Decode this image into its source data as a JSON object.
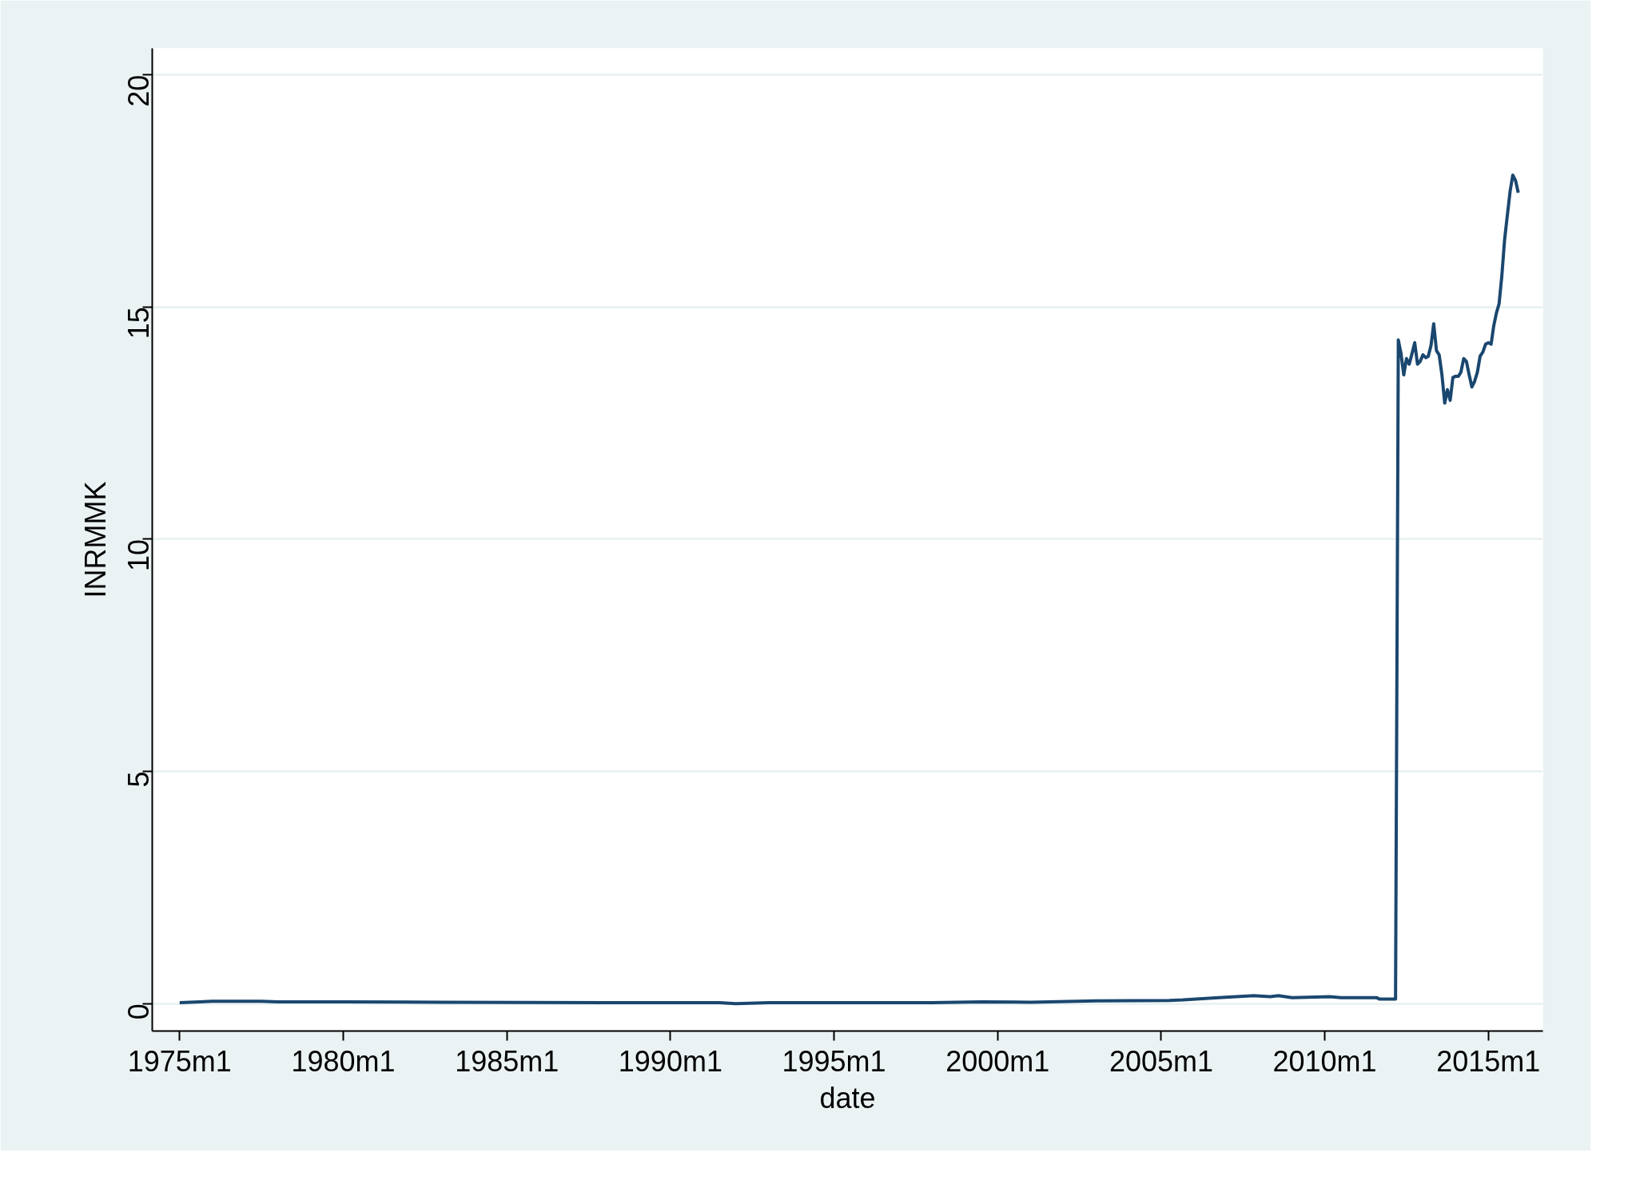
{
  "chart_data": {
    "type": "line",
    "xlabel": "date",
    "ylabel": "INRMMK",
    "x": [
      "1975-01",
      "1976-01",
      "1977-07",
      "1978-01",
      "1980-01",
      "1983-01",
      "1988-01",
      "1991-07",
      "1992-01",
      "1993-01",
      "1998-01",
      "1999-07",
      "2001-01",
      "2003-01",
      "2005-04",
      "2005-09",
      "2006-10",
      "2007-11",
      "2008-05",
      "2008-08",
      "2009-01",
      "2010-03",
      "2010-07",
      "2011-08",
      "2011-09",
      "2012-03",
      "2012-04",
      "2012-05",
      "2012-06",
      "2012-07",
      "2012-08",
      "2012-09",
      "2012-10",
      "2012-11",
      "2012-12",
      "2013-01",
      "2013-02",
      "2013-03",
      "2013-04",
      "2013-05",
      "2013-06",
      "2013-07",
      "2013-08",
      "2013-09",
      "2013-10",
      "2013-11",
      "2013-12",
      "2014-01",
      "2014-02",
      "2014-03",
      "2014-04",
      "2014-05",
      "2014-06",
      "2014-07",
      "2014-08",
      "2014-09",
      "2014-10",
      "2014-11",
      "2014-12",
      "2015-01",
      "2015-02",
      "2015-03",
      "2015-04",
      "2015-05",
      "2015-06",
      "2015-07",
      "2015-08",
      "2015-09",
      "2015-10",
      "2015-11",
      "2015-12"
    ],
    "series": [
      {
        "color": "#1a476f",
        "values": [
          0.02,
          0.05,
          0.05,
          0.04,
          0.04,
          0.03,
          0.02,
          0.02,
          0.0,
          0.02,
          0.02,
          0.04,
          0.03,
          0.06,
          0.07,
          0.08,
          0.13,
          0.17,
          0.15,
          0.17,
          0.13,
          0.15,
          0.13,
          0.13,
          0.1,
          0.1,
          14.29,
          14.0,
          13.54,
          13.89,
          13.77,
          14.0,
          14.23,
          13.77,
          13.83,
          13.97,
          13.91,
          13.94,
          14.17,
          14.64,
          14.06,
          13.97,
          13.54,
          12.93,
          13.22,
          12.99,
          13.48,
          13.51,
          13.51,
          13.6,
          13.89,
          13.83,
          13.54,
          13.28,
          13.4,
          13.6,
          13.94,
          14.03,
          14.2,
          14.23,
          14.2,
          14.58,
          14.87,
          15.07,
          15.68,
          16.44,
          16.97,
          17.49,
          17.84,
          17.72,
          17.46
        ]
      }
    ],
    "xlim": [
      "1974-03",
      "2016-09"
    ],
    "ylim": [
      -0.59,
      20.57
    ],
    "xticks": [
      {
        "value": "1975-01",
        "label": "1975m1"
      },
      {
        "value": "1980-01",
        "label": "1980m1"
      },
      {
        "value": "1985-01",
        "label": "1985m1"
      },
      {
        "value": "1990-01",
        "label": "1990m1"
      },
      {
        "value": "1995-01",
        "label": "1995m1"
      },
      {
        "value": "2000-01",
        "label": "2000m1"
      },
      {
        "value": "2005-01",
        "label": "2005m1"
      },
      {
        "value": "2010-01",
        "label": "2010m1"
      },
      {
        "value": "2015-01",
        "label": "2015m1"
      }
    ],
    "yticks": [
      0,
      5,
      10,
      15,
      20
    ],
    "grid": "y"
  }
}
